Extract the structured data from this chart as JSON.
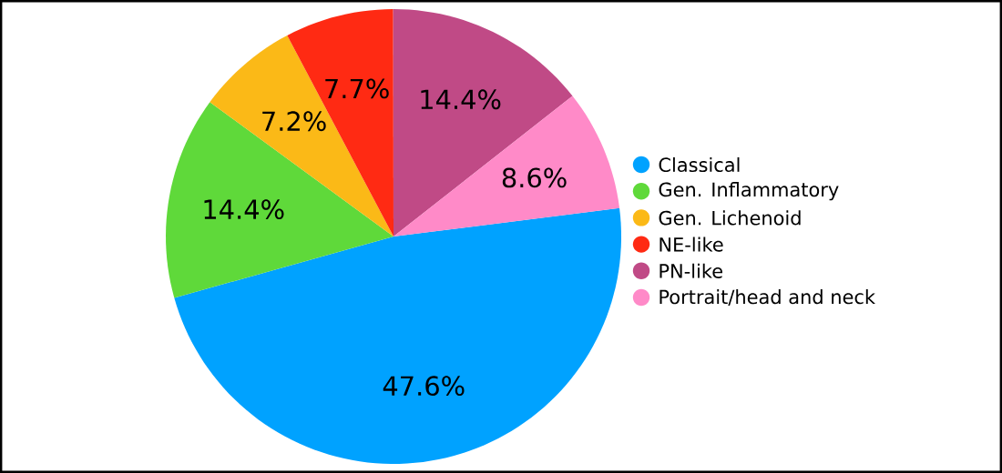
{
  "chart_data": {
    "type": "pie",
    "categories": [
      "Classical",
      "Gen. Inflammatory",
      "Gen. Lichenoid",
      "NE-like",
      "PN-like",
      "Portrait/head and neck"
    ],
    "values": [
      47.6,
      14.4,
      7.2,
      7.7,
      14.4,
      8.6
    ],
    "value_labels": [
      "47.6%",
      "14.4%",
      "7.2%",
      "7.7%",
      "14.4%",
      "8.6%"
    ],
    "colors": [
      "#00a2ff",
      "#5fd93a",
      "#fbb917",
      "#ff2a13",
      "#c04a86",
      "#ff8ac8"
    ],
    "legend": "right"
  }
}
